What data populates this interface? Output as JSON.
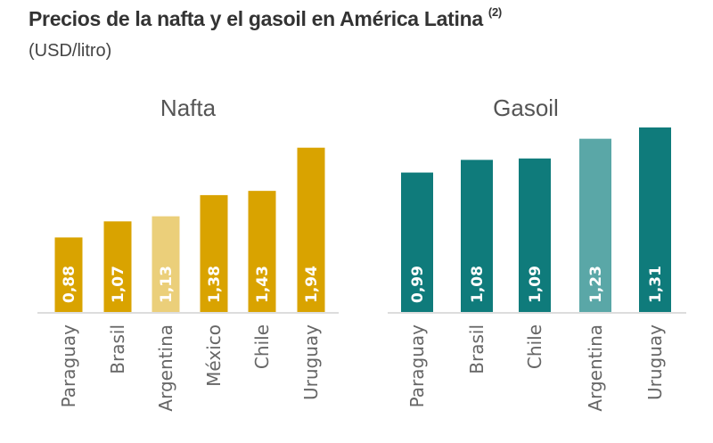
{
  "title": "Precios de la nafta y el gasoil en América Latina",
  "footnote": "(2)",
  "subtitle": "(USD/litro)",
  "chart_data": [
    {
      "type": "bar",
      "title": "Nafta",
      "categories": [
        "Paraguay",
        "Brasil",
        "Argentina",
        "México",
        "Chile",
        "Uruguay"
      ],
      "values": [
        0.88,
        1.07,
        1.13,
        1.38,
        1.43,
        1.94
      ],
      "value_labels": [
        "0,88",
        "1,07",
        "1,13",
        "1,38",
        "1,43",
        "1,94"
      ],
      "color": "#D9A300",
      "highlight_color": "#EBCF7A",
      "highlight": "Argentina",
      "grid": false
    },
    {
      "type": "bar",
      "title": "Gasoil",
      "categories": [
        "Paraguay",
        "Brasil",
        "Chile",
        "Argentina",
        "Uruguay"
      ],
      "values": [
        0.99,
        1.08,
        1.09,
        1.23,
        1.31
      ],
      "value_labels": [
        "0,99",
        "1,08",
        "1,09",
        "1,23",
        "1,31"
      ],
      "color": "#0F7B7B",
      "highlight_color": "#5AA7A7",
      "highlight": "Argentina",
      "grid": false
    }
  ]
}
